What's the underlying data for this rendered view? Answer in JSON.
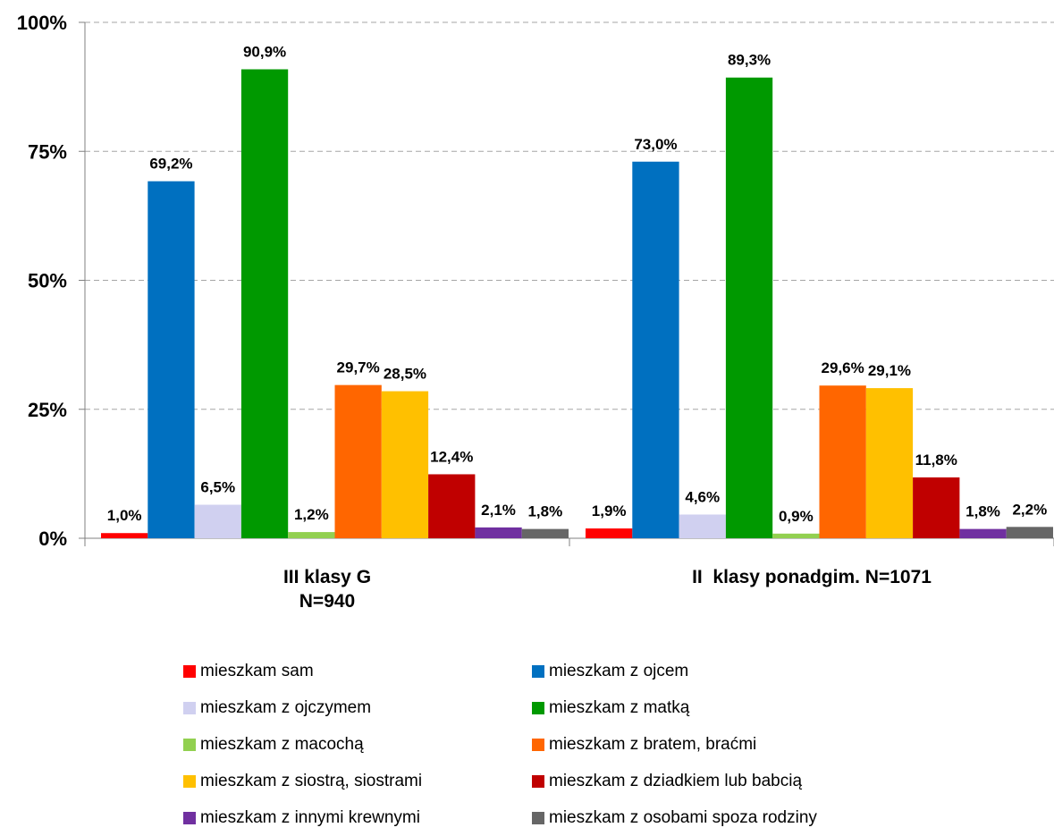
{
  "chart_data": {
    "type": "bar",
    "categories": [
      [
        "III klasy G",
        "N=940"
      ],
      [
        "II  klasy ponadgim. N=1071"
      ]
    ],
    "ylim": [
      0,
      100
    ],
    "yticks": [
      {
        "value": 0,
        "label": "0%"
      },
      {
        "value": 25,
        "label": "25%"
      },
      {
        "value": 50,
        "label": "50%"
      },
      {
        "value": 75,
        "label": "75%"
      },
      {
        "value": 100,
        "label": "100%"
      }
    ],
    "grid": true,
    "legend_position": "bottom",
    "series": [
      {
        "name": "mieszkam sam",
        "color": "#ff0000",
        "values": [
          1.0,
          1.9
        ],
        "labels": [
          "1,0%",
          "1,9%"
        ]
      },
      {
        "name": "mieszkam z ojcem",
        "color": "#0070c0",
        "values": [
          69.2,
          73.0
        ],
        "labels": [
          "69,2%",
          "73,0%"
        ]
      },
      {
        "name": "mieszkam z ojczymem",
        "color": "#d0d0f0",
        "values": [
          6.5,
          4.6
        ],
        "labels": [
          "6,5%",
          "4,6%"
        ]
      },
      {
        "name": "mieszkam z matką",
        "color": "#009900",
        "values": [
          90.9,
          89.3
        ],
        "labels": [
          "90,9%",
          "89,3%"
        ]
      },
      {
        "name": "mieszkam z macochą",
        "color": "#92d050",
        "values": [
          1.2,
          0.9
        ],
        "labels": [
          "1,2%",
          "0,9%"
        ]
      },
      {
        "name": "mieszkam z bratem, braćmi",
        "color": "#ff6600",
        "values": [
          29.7,
          29.6
        ],
        "labels": [
          "29,7%",
          "29,6%"
        ]
      },
      {
        "name": "mieszkam z siostrą, siostrami",
        "color": "#ffc000",
        "values": [
          28.5,
          29.1
        ],
        "labels": [
          "28,5%",
          "29,1%"
        ]
      },
      {
        "name": "mieszkam z dziadkiem lub babcią",
        "color": "#c00000",
        "values": [
          12.4,
          11.8
        ],
        "labels": [
          "12,4%",
          "11,8%"
        ]
      },
      {
        "name": "mieszkam z innymi krewnymi",
        "color": "#7030a0",
        "values": [
          2.1,
          1.8
        ],
        "labels": [
          "2,1%",
          "1,8%"
        ]
      },
      {
        "name": "mieszkam z osobami spoza rodziny",
        "color": "#666666",
        "values": [
          1.8,
          2.2
        ],
        "labels": [
          "1,8%",
          "2,2%"
        ]
      }
    ]
  }
}
